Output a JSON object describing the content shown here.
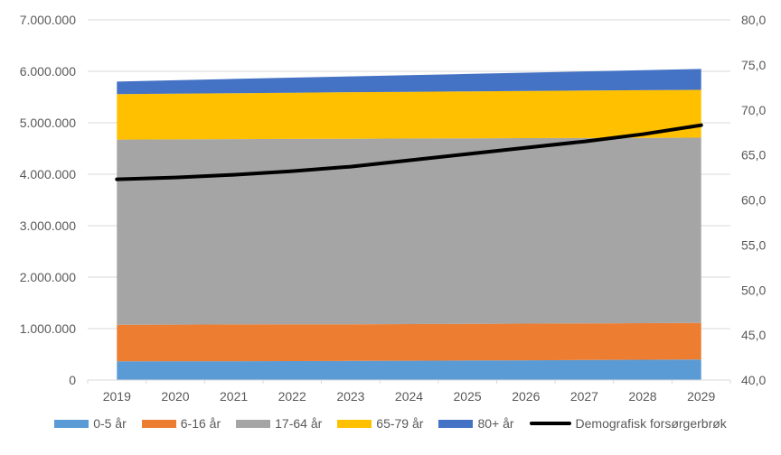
{
  "chart_data": {
    "type": "area",
    "stacked": true,
    "title": "",
    "x_labels": [
      "2019",
      "2020",
      "2021",
      "2022",
      "2023",
      "2024",
      "2025",
      "2026",
      "2027",
      "2028",
      "2029"
    ],
    "series": [
      {
        "name": "0-5 år",
        "color": "#5B9BD5",
        "values": [
          365000,
          366000,
          367000,
          369000,
          372000,
          376000,
          380000,
          385000,
          390000,
          395000,
          400000
        ]
      },
      {
        "name": "6-16 år",
        "color": "#ED7D31",
        "values": [
          711000,
          712000,
          713000,
          713000,
          713000,
          712000,
          712000,
          711000,
          711000,
          711000,
          711000
        ]
      },
      {
        "name": "17-64 år",
        "color": "#A5A5A5",
        "values": [
          3598000,
          3600000,
          3602000,
          3604000,
          3605000,
          3606000,
          3606000,
          3605000,
          3603000,
          3601000,
          3599000
        ]
      },
      {
        "name": "65-79 år",
        "color": "#FFC000",
        "values": [
          884000,
          889000,
          894000,
          899000,
          904000,
          908000,
          912000,
          917000,
          922000,
          926000,
          930000
        ]
      },
      {
        "name": "80+ år",
        "color": "#4472C4",
        "values": [
          242000,
          259000,
          276000,
          292000,
          308000,
          324000,
          340000,
          356000,
          372000,
          389000,
          406000
        ]
      }
    ],
    "line_series": {
      "name": "Demografisk forsørgerbrøk",
      "color": "#000000",
      "axis": "right",
      "values": [
        62.3,
        62.5,
        62.8,
        63.2,
        63.7,
        64.4,
        65.1,
        65.8,
        66.5,
        67.3,
        68.3
      ]
    },
    "left_axis": {
      "min": 0,
      "max": 7000000,
      "tick_values": [
        0,
        1000000,
        2000000,
        3000000,
        4000000,
        5000000,
        6000000,
        7000000
      ],
      "tick_labels": [
        "0",
        "1.000.000",
        "2.000.000",
        "3.000.000",
        "4.000.000",
        "5.000.000",
        "6.000.000",
        "7.000.000"
      ]
    },
    "right_axis": {
      "min": 40,
      "max": 80,
      "tick_values": [
        40,
        45,
        50,
        55,
        60,
        65,
        70,
        75,
        80
      ],
      "tick_labels": [
        "40,0",
        "45,0",
        "50,0",
        "55,0",
        "60,0",
        "65,0",
        "70,0",
        "75,0",
        "80,0"
      ]
    },
    "grid": true,
    "legend_position": "bottom"
  },
  "colors": {
    "grid": "#D9D9D9",
    "axis_line": "#D9D9D9",
    "tick_text": "#595959",
    "background": "#FFFFFF"
  }
}
